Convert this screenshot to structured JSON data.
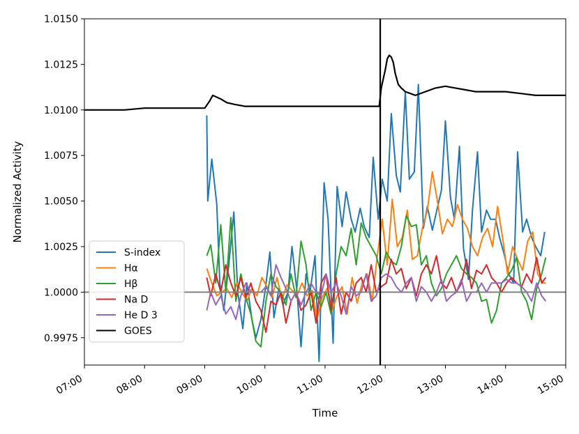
{
  "chart_data": {
    "type": "line",
    "xlabel": "Time",
    "ylabel": "Normalized Activity",
    "xlim": [
      "07:00",
      "15:00"
    ],
    "ylim": [
      0.996,
      1.015
    ],
    "x_ticks": [
      "07:00",
      "08:00",
      "09:00",
      "10:00",
      "11:00",
      "12:00",
      "13:00",
      "14:00",
      "15:00"
    ],
    "y_ticks": [
      "0.9975",
      "1.0000",
      "1.0025",
      "1.0050",
      "1.0075",
      "1.0100",
      "1.0125",
      "1.0150"
    ],
    "reference_line_y": 1.0,
    "event_time": "11:55",
    "grid": false,
    "legend_position": "lower-left",
    "series": [
      {
        "name": "S-index",
        "color": "#1f77b4",
        "x": [
          "09:02",
          "09:03",
          "09:07",
          "09:12",
          "09:15",
          "09:19",
          "09:24",
          "09:29",
          "09:33",
          "09:38",
          "09:42",
          "09:47",
          "09:51",
          "09:56",
          "10:00",
          "10:05",
          "10:09",
          "10:14",
          "10:18",
          "10:23",
          "10:27",
          "10:32",
          "10:36",
          "10:41",
          "10:45",
          "10:50",
          "10:54",
          "10:59",
          "11:03",
          "11:08",
          "11:12",
          "11:17",
          "11:21",
          "11:26",
          "11:30",
          "11:35",
          "11:39",
          "11:44",
          "11:48",
          "11:53",
          "11:57",
          "12:02",
          "12:06",
          "12:11",
          "12:15",
          "12:20",
          "12:24",
          "12:29",
          "12:33",
          "12:38",
          "12:42",
          "12:47",
          "12:51",
          "12:56",
          "13:00",
          "13:05",
          "13:09",
          "13:14",
          "13:18",
          "13:23",
          "13:27",
          "13:32",
          "13:36",
          "13:41",
          "13:45",
          "13:50",
          "13:54",
          "13:59",
          "14:03",
          "14:08",
          "14:12",
          "14:17",
          "14:21",
          "14:26",
          "14:30",
          "14:35",
          "14:39"
        ],
        "values": [
          1.0097,
          1.005,
          1.0073,
          1.0048,
          1.0005,
          0.999,
          1.0015,
          1.0044,
          1.0,
          0.998,
          1.0005,
          0.9985,
          0.9975,
          0.9985,
          1.0,
          1.0022,
          0.9986,
          1.0002,
          0.9993,
          1.0,
          1.0025,
          1.0,
          0.997,
          1.001,
          1.0,
          1.002,
          0.9962,
          1.006,
          1.004,
          0.9972,
          1.0058,
          1.0036,
          1.0055,
          1.004,
          1.0033,
          1.0046,
          1.0036,
          1.003,
          1.0074,
          1.004,
          1.0062,
          1.005,
          1.0098,
          1.0064,
          1.0055,
          1.011,
          1.0062,
          1.0066,
          1.0114,
          1.0035,
          1.0047,
          1.0034,
          1.0044,
          1.0056,
          1.0094,
          1.0052,
          1.004,
          1.008,
          1.0024,
          1.0007,
          1.0045,
          1.0077,
          1.0033,
          1.0045,
          1.004,
          1.004,
          1.003,
          1.002,
          1.001,
          1.0005,
          1.0077,
          1.0033,
          1.004,
          1.003,
          1.0025,
          1.002,
          1.0033
        ]
      },
      {
        "name": "Hα",
        "color": "#ff7f0e",
        "x": [
          "09:02",
          "09:07",
          "09:12",
          "09:17",
          "09:22",
          "09:27",
          "09:32",
          "09:37",
          "09:42",
          "09:47",
          "09:52",
          "09:57",
          "10:02",
          "10:07",
          "10:12",
          "10:17",
          "10:22",
          "10:27",
          "10:32",
          "10:37",
          "10:42",
          "10:47",
          "10:52",
          "10:57",
          "11:02",
          "11:07",
          "11:12",
          "11:17",
          "11:22",
          "11:27",
          "11:32",
          "11:37",
          "11:42",
          "11:47",
          "11:52",
          "11:57",
          "12:02",
          "12:07",
          "12:12",
          "12:17",
          "12:22",
          "12:27",
          "12:32",
          "12:37",
          "12:42",
          "12:47",
          "12:52",
          "12:57",
          "13:02",
          "13:07",
          "13:12",
          "13:17",
          "13:22",
          "13:27",
          "13:32",
          "13:37",
          "13:42",
          "13:47",
          "13:52",
          "13:57",
          "14:02",
          "14:07",
          "14:12",
          "14:17",
          "14:22",
          "14:27",
          "14:32",
          "14:37",
          "14:40"
        ],
        "values": [
          1.0013,
          1.0005,
          0.9998,
          1.0,
          1.0002,
          0.9997,
          1.0005,
          1.0,
          0.9995,
          1.0002,
          0.9998,
          1.0008,
          1.0003,
          0.9997,
          1.0008,
          0.9996,
          1.0004,
          1.0001,
          0.9998,
          1.0005,
          0.9998,
          1.0001,
          0.9985,
          0.9997,
          1.0002,
          0.999,
          0.9998,
          1.0003,
          0.9988,
          1.0008,
          0.9994,
          1.0005,
          1.001,
          0.9995,
          1.002,
          1.004,
          1.0015,
          1.0051,
          1.0025,
          1.003,
          1.0045,
          1.0018,
          1.002,
          1.0035,
          1.0045,
          1.0066,
          1.005,
          1.0032,
          1.004,
          1.0036,
          1.0048,
          1.004,
          1.0035,
          1.0025,
          1.002,
          1.003,
          1.0035,
          1.0025,
          1.0047,
          1.003,
          1.001,
          1.0025,
          1.0018,
          1.0012,
          1.0028,
          1.0033,
          1.001,
          1.0005,
          1.0005
        ]
      },
      {
        "name": "Hβ",
        "color": "#2ca02c",
        "x": [
          "09:02",
          "09:06",
          "09:11",
          "09:16",
          "09:21",
          "09:26",
          "09:31",
          "09:36",
          "09:41",
          "09:46",
          "09:51",
          "09:56",
          "10:01",
          "10:06",
          "10:11",
          "10:16",
          "10:21",
          "10:26",
          "10:31",
          "10:36",
          "10:41",
          "10:46",
          "10:51",
          "10:56",
          "11:01",
          "11:06",
          "11:11",
          "11:16",
          "11:21",
          "11:26",
          "11:31",
          "11:36",
          "11:41",
          "11:46",
          "11:51",
          "11:56",
          "12:01",
          "12:06",
          "12:11",
          "12:16",
          "12:21",
          "12:26",
          "12:31",
          "12:36",
          "12:41",
          "12:46",
          "12:51",
          "12:56",
          "13:01",
          "13:06",
          "13:11",
          "13:16",
          "13:21",
          "13:26",
          "13:31",
          "13:36",
          "13:41",
          "13:46",
          "13:51",
          "13:56",
          "14:01",
          "14:06",
          "14:11",
          "14:16",
          "14:21",
          "14:26",
          "14:31",
          "14:36",
          "14:40"
        ],
        "values": [
          1.002,
          1.0026,
          1.0005,
          1.0037,
          1.0,
          1.0041,
          0.9995,
          1.001,
          0.9997,
          0.9988,
          0.9973,
          0.997,
          0.9995,
          1.001,
          1.0003,
          1.0,
          0.9993,
          1.001,
          0.9997,
          1.0028,
          1.0015,
          0.999,
          1.0,
          0.9992,
          1.0,
          0.9988,
          1.001,
          1.0025,
          1.002,
          1.0035,
          1.0015,
          1.0038,
          1.003,
          1.0025,
          1.002,
          1.001,
          1.0022,
          1.0017,
          1.0015,
          1.0025,
          1.0042,
          1.0036,
          1.0037,
          1.0015,
          1.002,
          1.0005,
          0.9998,
          1.0002,
          1.001,
          1.0015,
          1.002,
          1.0013,
          1.001,
          1.0008,
          1.0005,
          0.9995,
          0.9996,
          0.9983,
          0.999,
          1.0005,
          1.0008,
          1.0012,
          1.0019,
          1.0,
          0.9995,
          0.9985,
          1.0002,
          1.001,
          1.0019
        ]
      },
      {
        "name": "Na D",
        "color": "#d62728",
        "x": [
          "09:02",
          "09:06",
          "09:11",
          "09:16",
          "09:21",
          "09:26",
          "09:31",
          "09:36",
          "09:41",
          "09:46",
          "09:51",
          "09:56",
          "10:01",
          "10:06",
          "10:11",
          "10:16",
          "10:21",
          "10:26",
          "10:31",
          "10:36",
          "10:41",
          "10:46",
          "10:51",
          "10:56",
          "11:01",
          "11:06",
          "11:11",
          "11:16",
          "11:21",
          "11:26",
          "11:31",
          "11:36",
          "11:41",
          "11:46",
          "11:51",
          "11:56",
          "12:01",
          "12:06",
          "12:11",
          "12:16",
          "12:21",
          "12:26",
          "12:31",
          "12:36",
          "12:41",
          "12:46",
          "12:51",
          "12:56",
          "13:01",
          "13:06",
          "13:11",
          "13:16",
          "13:21",
          "13:26",
          "13:31",
          "13:36",
          "13:41",
          "13:46",
          "13:51",
          "13:56",
          "14:01",
          "14:06",
          "14:11",
          "14:16",
          "14:21",
          "14:26",
          "14:31",
          "14:36",
          "14:40"
        ],
        "values": [
          1.0008,
          0.9998,
          1.001,
          1.0,
          1.0015,
          1.0005,
          0.9998,
          1.0008,
          0.9997,
          1.0005,
          0.9995,
          0.999,
          0.9978,
          0.9995,
          0.9993,
          1.0,
          0.9983,
          0.9995,
          1.0,
          0.999,
          0.9993,
          1.0,
          0.9983,
          1.0005,
          1.001,
          0.999,
          1.0008,
          0.9988,
          1.0,
          0.9995,
          1.0005,
          1.0008,
          1.0,
          1.0015,
          1.0,
          1.0003,
          1.0005,
          1.0018,
          1.001,
          1.0013,
          1.0002,
          1.0008,
          0.9998,
          1.001,
          1.0015,
          1.001,
          1.002,
          1.0005,
          1.0002,
          1.0008,
          1.0,
          1.0005,
          1.0018,
          1.0002,
          1.0012,
          1.001,
          1.0015,
          1.0008,
          1.0005,
          1.0,
          1.0005,
          1.0008,
          1.0005,
          1.0003,
          1.001,
          1.0005,
          1.0019,
          1.0005,
          1.0008
        ]
      },
      {
        "name": "He D 3",
        "color": "#9467bd",
        "x": [
          "09:02",
          "09:06",
          "09:11",
          "09:16",
          "09:21",
          "09:26",
          "09:31",
          "09:36",
          "09:41",
          "09:46",
          "09:51",
          "09:56",
          "10:01",
          "10:06",
          "10:11",
          "10:16",
          "10:21",
          "10:26",
          "10:31",
          "10:36",
          "10:41",
          "10:46",
          "10:51",
          "10:56",
          "11:01",
          "11:06",
          "11:11",
          "11:16",
          "11:21",
          "11:26",
          "11:31",
          "11:36",
          "11:41",
          "11:46",
          "11:51",
          "11:56",
          "12:01",
          "12:06",
          "12:11",
          "12:16",
          "12:21",
          "12:26",
          "12:31",
          "12:36",
          "12:41",
          "12:46",
          "12:51",
          "12:56",
          "13:01",
          "13:06",
          "13:11",
          "13:16",
          "13:21",
          "13:26",
          "13:31",
          "13:36",
          "13:41",
          "13:46",
          "13:51",
          "13:56",
          "14:01",
          "14:06",
          "14:11",
          "14:16",
          "14:21",
          "14:26",
          "14:31",
          "14:36",
          "14:40"
        ],
        "values": [
          0.999,
          1.0,
          0.9993,
          0.9998,
          0.9988,
          0.9992,
          0.9985,
          0.9998,
          1.0005,
          1.0,
          1.0,
          1.0,
          1.0003,
          0.9998,
          1.0015,
          1.0008,
          1.0002,
          0.9995,
          1.0,
          0.9993,
          1.0,
          1.0005,
          1.0,
          0.9998,
          1.001,
          1.0,
          1.0005,
          0.9998,
          0.9988,
          1.0003,
          0.9998,
          1.0,
          1.001,
          0.9995,
          0.9998,
          1.0008,
          1.001,
          1.0008,
          1.0003,
          1.0,
          1.0005,
          1.0008,
          0.9995,
          1.0003,
          1.0,
          0.9995,
          1.0,
          1.0007,
          0.9995,
          0.9998,
          1.0,
          1.0007,
          0.9995,
          1.0,
          1.0,
          1.0005,
          1.0,
          1.0005,
          1.0005,
          1.0005,
          1.0007,
          1.0005,
          1.0005,
          1.0003,
          1.0,
          0.9995,
          1.0005,
          0.9998,
          0.9995
        ]
      },
      {
        "name": "GOES",
        "color": "#000000",
        "x": [
          "07:00",
          "07:20",
          "07:40",
          "08:00",
          "08:20",
          "08:40",
          "09:00",
          "09:05",
          "09:08",
          "09:12",
          "09:16",
          "09:22",
          "09:30",
          "09:40",
          "09:55",
          "10:10",
          "10:30",
          "10:50",
          "11:10",
          "11:30",
          "11:50",
          "11:54",
          "11:56",
          "11:58",
          "12:00",
          "12:02",
          "12:04",
          "12:06",
          "12:08",
          "12:10",
          "12:13",
          "12:16",
          "12:20",
          "12:25",
          "12:30",
          "12:40",
          "12:50",
          "13:00",
          "13:10",
          "13:20",
          "13:30",
          "13:45",
          "14:00",
          "14:15",
          "14:30",
          "14:45",
          "15:00"
        ],
        "values": [
          1.01,
          1.01,
          1.01,
          1.0101,
          1.0101,
          1.0101,
          1.0101,
          1.0105,
          1.0108,
          1.0107,
          1.0106,
          1.0104,
          1.0103,
          1.0102,
          1.0102,
          1.0102,
          1.0102,
          1.0102,
          1.0102,
          1.0102,
          1.0102,
          1.0102,
          1.0112,
          1.0117,
          1.0122,
          1.0128,
          1.013,
          1.0129,
          1.0126,
          1.012,
          1.0114,
          1.0112,
          1.011,
          1.0109,
          1.0108,
          1.011,
          1.0112,
          1.0113,
          1.0112,
          1.0111,
          1.011,
          1.011,
          1.011,
          1.0109,
          1.0108,
          1.0108,
          1.0108
        ]
      }
    ]
  }
}
